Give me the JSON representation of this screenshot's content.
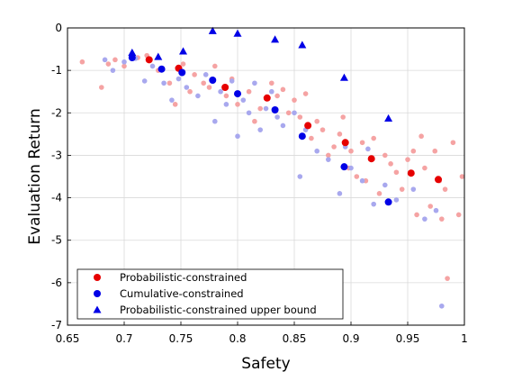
{
  "chart_data": {
    "type": "scatter",
    "xlabel": "Safety",
    "ylabel": "Evaluation Return",
    "xlim": [
      0.65,
      1.0
    ],
    "ylim": [
      -7,
      0
    ],
    "xticks": [
      0.65,
      0.7,
      0.75,
      0.8,
      0.85,
      0.9,
      0.95,
      1.0
    ],
    "xtick_labels": [
      "0.65",
      "0.7",
      "0.75",
      "0.8",
      "0.85",
      "0.9",
      "0.95",
      "1"
    ],
    "yticks": [
      -7,
      -6,
      -5,
      -4,
      -3,
      -2,
      -1,
      0
    ],
    "ytick_labels": [
      "-7",
      "-6",
      "-5",
      "-4",
      "-3",
      "-2",
      "-1",
      "0"
    ],
    "grid": true,
    "legend_placement": "bottom-left",
    "colors": {
      "prob": "#e60000",
      "cum": "#0000e6",
      "prob_light": "#f5a3a3",
      "cum_light": "#a8a8ee"
    },
    "series": [
      {
        "name": "Probabilistic-constrained",
        "marker": "circle",
        "color": "#e60000",
        "x": [
          0.722,
          0.748,
          0.789,
          0.826,
          0.862,
          0.895,
          0.918,
          0.953,
          0.977
        ],
        "y": [
          -0.75,
          -0.95,
          -1.4,
          -1.65,
          -2.3,
          -2.7,
          -3.08,
          -3.42,
          -3.57
        ]
      },
      {
        "name": "Cumulative-constrained",
        "marker": "circle",
        "color": "#0000e6",
        "x": [
          0.707,
          0.733,
          0.751,
          0.778,
          0.8,
          0.833,
          0.857,
          0.894,
          0.933
        ],
        "y": [
          -0.7,
          -0.97,
          -1.05,
          -1.23,
          -1.55,
          -1.93,
          -2.55,
          -3.27,
          -4.1
        ]
      },
      {
        "name": "Probabilistic-constrained upper bound",
        "marker": "triangle",
        "color": "#0000e6",
        "x": [
          0.707,
          0.73,
          0.752,
          0.778,
          0.8,
          0.833,
          0.857,
          0.894,
          0.933
        ],
        "y": [
          -0.58,
          -0.68,
          -0.55,
          -0.07,
          -0.13,
          -0.27,
          -0.4,
          -1.17,
          -2.13
        ]
      },
      {
        "role": "background-probabilistic",
        "marker": "circle",
        "color": "#f5a3a3",
        "x": [
          0.663,
          0.68,
          0.686,
          0.692,
          0.7,
          0.712,
          0.72,
          0.73,
          0.74,
          0.745,
          0.752,
          0.758,
          0.762,
          0.77,
          0.775,
          0.78,
          0.79,
          0.795,
          0.8,
          0.81,
          0.815,
          0.82,
          0.83,
          0.835,
          0.84,
          0.845,
          0.85,
          0.855,
          0.86,
          0.865,
          0.87,
          0.875,
          0.88,
          0.885,
          0.89,
          0.893,
          0.898,
          0.9,
          0.905,
          0.91,
          0.913,
          0.92,
          0.925,
          0.93,
          0.935,
          0.94,
          0.945,
          0.95,
          0.955,
          0.958,
          0.962,
          0.965,
          0.97,
          0.974,
          0.978,
          0.98,
          0.983,
          0.985,
          0.99,
          0.995,
          0.998
        ],
        "y": [
          -0.8,
          -1.4,
          -0.85,
          -0.75,
          -0.9,
          -0.7,
          -0.65,
          -1.0,
          -1.3,
          -1.8,
          -0.85,
          -1.5,
          -1.1,
          -1.3,
          -1.4,
          -0.9,
          -1.6,
          -1.2,
          -1.8,
          -1.5,
          -2.2,
          -1.9,
          -1.3,
          -1.6,
          -1.45,
          -2.0,
          -1.7,
          -2.1,
          -1.55,
          -2.6,
          -2.2,
          -2.4,
          -3.0,
          -2.8,
          -2.5,
          -2.1,
          -3.3,
          -2.9,
          -3.5,
          -2.7,
          -3.6,
          -2.6,
          -3.9,
          -3.0,
          -3.2,
          -3.4,
          -3.8,
          -3.1,
          -2.9,
          -4.4,
          -2.55,
          -3.3,
          -4.2,
          -2.9,
          -3.6,
          -4.5,
          -3.8,
          -5.9,
          -2.7,
          -4.4,
          -3.5
        ]
      },
      {
        "role": "background-cumulative",
        "marker": "circle",
        "color": "#a8a8ee",
        "x": [
          0.683,
          0.69,
          0.7,
          0.71,
          0.718,
          0.725,
          0.735,
          0.742,
          0.748,
          0.755,
          0.765,
          0.772,
          0.78,
          0.785,
          0.79,
          0.795,
          0.8,
          0.805,
          0.81,
          0.815,
          0.82,
          0.825,
          0.83,
          0.835,
          0.84,
          0.85,
          0.855,
          0.86,
          0.87,
          0.88,
          0.89,
          0.895,
          0.9,
          0.91,
          0.915,
          0.92,
          0.93,
          0.94,
          0.955,
          0.965,
          0.975,
          0.98
        ],
        "y": [
          -0.75,
          -1.0,
          -0.8,
          -0.72,
          -1.25,
          -0.9,
          -1.3,
          -1.7,
          -1.2,
          -1.4,
          -1.6,
          -1.1,
          -2.2,
          -1.5,
          -1.8,
          -1.25,
          -2.55,
          -1.7,
          -2.0,
          -1.3,
          -2.4,
          -1.9,
          -1.5,
          -2.1,
          -2.3,
          -2.0,
          -3.5,
          -2.4,
          -2.9,
          -3.1,
          -3.9,
          -2.8,
          -3.3,
          -3.6,
          -2.85,
          -4.15,
          -3.7,
          -4.05,
          -3.8,
          -4.5,
          -4.3,
          -6.55
        ]
      }
    ],
    "legend": [
      {
        "label": "Probabilistic-constrained",
        "marker": "circle",
        "color": "#e60000"
      },
      {
        "label": "Cumulative-constrained",
        "marker": "circle",
        "color": "#0000e6"
      },
      {
        "label": "Probabilistic-constrained upper bound",
        "marker": "triangle",
        "color": "#0000e6"
      }
    ]
  }
}
